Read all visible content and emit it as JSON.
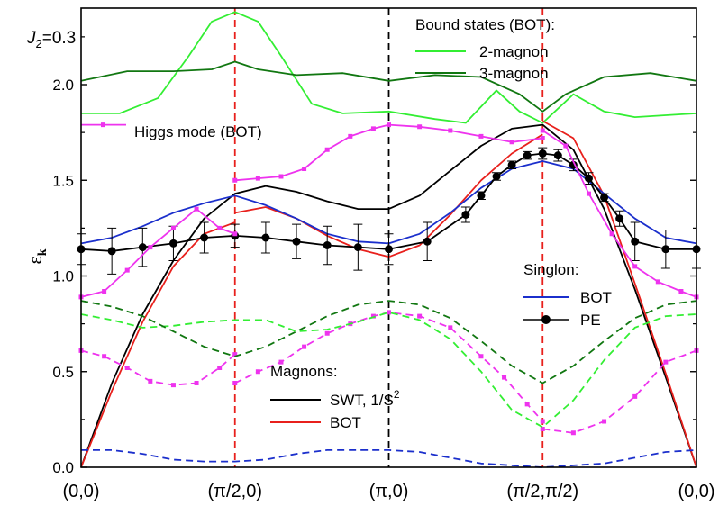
{
  "chart_data": {
    "type": "line",
    "annotation_param": {
      "symbol": "J",
      "subscript": "2",
      "equals": "=0.3"
    },
    "ylabel": {
      "symbol": "ε",
      "subscript": "k"
    },
    "xlabel": "",
    "ylim": [
      0.0,
      2.4
    ],
    "y_ticks": [
      0.0,
      0.5,
      1.0,
      1.5,
      2.0
    ],
    "y_tick_labels": [
      "0.0",
      "0.5",
      "1.0",
      "1.5",
      "2.0"
    ],
    "x_ticks": [
      0,
      1,
      2,
      3,
      4
    ],
    "x_tick_labels": [
      "(0,0)",
      "(π/2,0)",
      "(π,0)",
      "(π/2,π/2)",
      "(0,0)"
    ],
    "xlim": [
      0,
      4
    ],
    "vlines": [
      {
        "x": 1,
        "color": "#e8201c",
        "style": "dashed"
      },
      {
        "x": 2,
        "color": "#000000",
        "style": "dashed"
      },
      {
        "x": 3,
        "color": "#e8201c",
        "style": "dashed"
      }
    ],
    "legend_groups": [
      {
        "title": "Bound states (BOT):",
        "position": "top-right",
        "entries": [
          {
            "label": "2-magnon",
            "color": "#33ee33",
            "marker": "none"
          },
          {
            "label": "3-magnon",
            "color": "#117711",
            "marker": "none"
          }
        ]
      },
      {
        "title": "Singlon:",
        "position": "middle-right",
        "entries": [
          {
            "label": "BOT",
            "color": "#1b2fcc",
            "marker": "none"
          },
          {
            "label": "PE",
            "color": "#000000",
            "marker": "circle"
          }
        ]
      },
      {
        "title": "Magnons:",
        "position": "bottom-center",
        "entries": [
          {
            "label": "SWT, 1/S",
            "sup": "2",
            "color": "#000000",
            "marker": "none"
          },
          {
            "label": "BOT",
            "color": "#e8201c",
            "marker": "none"
          }
        ]
      }
    ],
    "higgs_label": {
      "text": "Higgs mode (BOT)",
      "color": "#ee33ee",
      "position": "upper-left"
    },
    "series": [
      {
        "name": "2-magnon",
        "color": "#33ee33",
        "style": "solid",
        "segments": [
          {
            "x": [
              0,
              0.25,
              0.5,
              0.7,
              0.85,
              1.0,
              1.15,
              1.3,
              1.5,
              1.7,
              2.0,
              2.3,
              2.5,
              2.7,
              2.85,
              3.0,
              3.2,
              3.4,
              3.6,
              3.8,
              4.0
            ],
            "y": [
              1.85,
              1.85,
              1.93,
              2.15,
              2.33,
              2.38,
              2.33,
              2.15,
              1.9,
              1.85,
              1.86,
              1.82,
              1.8,
              1.97,
              1.86,
              1.8,
              1.95,
              1.86,
              1.83,
              1.84,
              1.85
            ]
          }
        ]
      },
      {
        "name": "3-magnon",
        "color": "#117711",
        "style": "solid",
        "segments": [
          {
            "x": [
              0,
              0.3,
              0.6,
              0.85,
              1.0,
              1.15,
              1.4,
              1.7,
              2.0,
              2.3,
              2.6,
              2.85,
              3.0,
              3.15,
              3.4,
              3.7,
              4.0
            ],
            "y": [
              2.02,
              2.07,
              2.07,
              2.08,
              2.12,
              2.08,
              2.05,
              2.06,
              2.02,
              2.05,
              2.04,
              1.95,
              1.86,
              1.95,
              2.04,
              2.06,
              2.02
            ]
          }
        ]
      },
      {
        "name": "Magnon SWT",
        "color": "#000000",
        "style": "solid",
        "segments": [
          {
            "x": [
              0,
              0.2,
              0.4,
              0.6,
              0.8,
              1.0,
              1.2,
              1.4,
              1.6,
              1.8,
              2.0,
              2.2,
              2.4,
              2.6,
              2.8,
              3.0,
              3.2,
              3.4,
              3.6,
              3.8,
              4.0
            ],
            "y": [
              0,
              0.44,
              0.8,
              1.08,
              1.3,
              1.43,
              1.47,
              1.44,
              1.39,
              1.35,
              1.35,
              1.42,
              1.55,
              1.68,
              1.77,
              1.79,
              1.66,
              1.35,
              0.93,
              0.47,
              0
            ]
          }
        ]
      },
      {
        "name": "Magnon BOT",
        "color": "#e8201c",
        "style": "solid",
        "segments": [
          {
            "x": [
              0,
              0.2,
              0.4,
              0.6,
              0.8,
              1.0
            ],
            "y": [
              0,
              0.4,
              0.76,
              1.05,
              1.22,
              1.28
            ]
          },
          {
            "x": [
              1.0,
              1.2,
              1.4,
              1.6,
              1.8,
              2.0,
              2.2,
              2.4,
              2.6,
              2.8,
              3.0
            ],
            "y": [
              1.33,
              1.36,
              1.3,
              1.21,
              1.14,
              1.1,
              1.16,
              1.32,
              1.5,
              1.64,
              1.74
            ]
          },
          {
            "x": [
              3.0,
              3.2,
              3.4,
              3.6,
              3.8,
              4.0
            ],
            "y": [
              1.81,
              1.72,
              1.42,
              0.96,
              0.49,
              0
            ]
          }
        ]
      },
      {
        "name": "Singlon BOT",
        "color": "#1b2fcc",
        "style": "solid",
        "segments": [
          {
            "x": [
              0,
              0.2,
              0.4,
              0.6,
              0.8,
              1.0,
              1.2,
              1.4,
              1.6,
              1.8,
              2.0,
              2.2,
              2.4,
              2.6,
              2.8,
              3.0,
              3.2,
              3.4,
              3.6,
              3.8,
              4.0
            ],
            "y": [
              1.17,
              1.2,
              1.26,
              1.33,
              1.38,
              1.42,
              1.37,
              1.3,
              1.22,
              1.18,
              1.17,
              1.22,
              1.33,
              1.46,
              1.56,
              1.6,
              1.56,
              1.43,
              1.3,
              1.2,
              1.17
            ]
          }
        ]
      },
      {
        "name": "Singlon PE",
        "color": "#000000",
        "style": "solid",
        "marker": "circle",
        "segments": [
          {
            "x": [
              0,
              0.2,
              0.4,
              0.6,
              0.8,
              1.0,
              1.2,
              1.4,
              1.6,
              1.8,
              2.0,
              2.25,
              2.5,
              2.6,
              2.7,
              2.8,
              2.9,
              3.0,
              3.1,
              3.2,
              3.3,
              3.4,
              3.5,
              3.6,
              3.8,
              4.0
            ],
            "y": [
              1.14,
              1.13,
              1.15,
              1.17,
              1.2,
              1.21,
              1.2,
              1.18,
              1.16,
              1.15,
              1.14,
              1.18,
              1.32,
              1.42,
              1.52,
              1.58,
              1.63,
              1.64,
              1.63,
              1.58,
              1.51,
              1.41,
              1.3,
              1.18,
              1.14,
              1.14
            ]
          }
        ],
        "err": [
          0.08,
          0.12,
          0.1,
          0.09,
          0.08,
          0.06,
          0.08,
          0.09,
          0.1,
          0.12,
          0.08,
          0.1,
          0.04,
          0.02,
          0.02,
          0.02,
          0.02,
          0.03,
          0.03,
          0.03,
          0.03,
          0.02,
          0.04,
          0.1,
          0.1,
          0.1
        ]
      },
      {
        "name": "Higgs mode",
        "color": "#ee33ee",
        "style": "solid",
        "marker": "square",
        "segments": [
          {
            "x": [
              0,
              0.15,
              0.3,
              0.45,
              0.6,
              0.75,
              0.9,
              1.0
            ],
            "y": [
              0.89,
              0.92,
              1.03,
              1.15,
              1.25,
              1.35,
              1.25,
              1.22
            ]
          },
          {
            "x": [
              1.0,
              1.15,
              1.3,
              1.45,
              1.6,
              1.75,
              1.9,
              2.0,
              2.2,
              2.4,
              2.6,
              2.8,
              3.0
            ],
            "y": [
              1.5,
              1.51,
              1.52,
              1.56,
              1.66,
              1.73,
              1.77,
              1.79,
              1.78,
              1.76,
              1.73,
              1.7,
              1.72
            ]
          },
          {
            "x": [
              3.0,
              3.15,
              3.3,
              3.45,
              3.6,
              3.75,
              3.9,
              4.0
            ],
            "y": [
              1.76,
              1.68,
              1.43,
              1.22,
              1.05,
              0.97,
              0.92,
              0.89
            ]
          }
        ]
      },
      {
        "name": "Higgs mode lower",
        "color": "#ee33ee",
        "style": "dashed",
        "marker": "square",
        "segments": [
          {
            "x": [
              0,
              0.15,
              0.3,
              0.45,
              0.6,
              0.75,
              0.9,
              1.0
            ],
            "y": [
              0.61,
              0.58,
              0.52,
              0.45,
              0.43,
              0.44,
              0.52,
              0.59
            ]
          },
          {
            "x": [
              1.0,
              1.15,
              1.3,
              1.45,
              1.6,
              1.75,
              1.9,
              2.0,
              2.2,
              2.4,
              2.6,
              2.75,
              2.9,
              3.0
            ],
            "y": [
              0.44,
              0.5,
              0.55,
              0.63,
              0.7,
              0.75,
              0.79,
              0.81,
              0.79,
              0.73,
              0.58,
              0.47,
              0.33,
              0.24
            ]
          },
          {
            "x": [
              3.0,
              3.2,
              3.4,
              3.6,
              3.8,
              4.0
            ],
            "y": [
              0.2,
              0.18,
              0.24,
              0.37,
              0.55,
              0.61
            ]
          }
        ]
      },
      {
        "name": "2-magnon lower",
        "color": "#33ee33",
        "style": "dashed",
        "segments": [
          {
            "x": [
              0,
              0.2,
              0.4,
              0.6,
              0.8,
              1.0,
              1.2,
              1.4,
              1.6,
              1.8,
              2.0,
              2.2,
              2.4,
              2.6,
              2.8,
              3.0,
              3.2,
              3.4,
              3.6,
              3.8,
              4.0
            ],
            "y": [
              0.8,
              0.77,
              0.73,
              0.74,
              0.76,
              0.77,
              0.77,
              0.71,
              0.72,
              0.76,
              0.81,
              0.77,
              0.67,
              0.5,
              0.3,
              0.21,
              0.35,
              0.56,
              0.73,
              0.79,
              0.8
            ]
          }
        ]
      },
      {
        "name": "3-magnon lower",
        "color": "#117711",
        "style": "dashed",
        "segments": [
          {
            "x": [
              0,
              0.2,
              0.4,
              0.6,
              0.8,
              1.0,
              1.2,
              1.4,
              1.6,
              1.8,
              2.0,
              2.2,
              2.4,
              2.6,
              2.8,
              3.0,
              3.2,
              3.4,
              3.6,
              3.8,
              4.0
            ],
            "y": [
              0.87,
              0.84,
              0.79,
              0.71,
              0.63,
              0.58,
              0.63,
              0.71,
              0.79,
              0.85,
              0.87,
              0.85,
              0.78,
              0.66,
              0.53,
              0.44,
              0.53,
              0.66,
              0.78,
              0.85,
              0.87
            ]
          }
        ]
      },
      {
        "name": "Singlon lower",
        "color": "#1b2fcc",
        "style": "dashed",
        "segments": [
          {
            "x": [
              0,
              0.2,
              0.4,
              0.6,
              0.8,
              1.0,
              1.2,
              1.4,
              1.6,
              1.8,
              2.0,
              2.2,
              2.4,
              2.6,
              2.8,
              3.0,
              3.2,
              3.4,
              3.6,
              3.8,
              4.0
            ],
            "y": [
              0.09,
              0.09,
              0.07,
              0.04,
              0.03,
              0.03,
              0.04,
              0.07,
              0.09,
              0.09,
              0.09,
              0.08,
              0.05,
              0.02,
              0.01,
              0.0,
              0.01,
              0.02,
              0.05,
              0.08,
              0.09
            ]
          }
        ]
      }
    ]
  }
}
